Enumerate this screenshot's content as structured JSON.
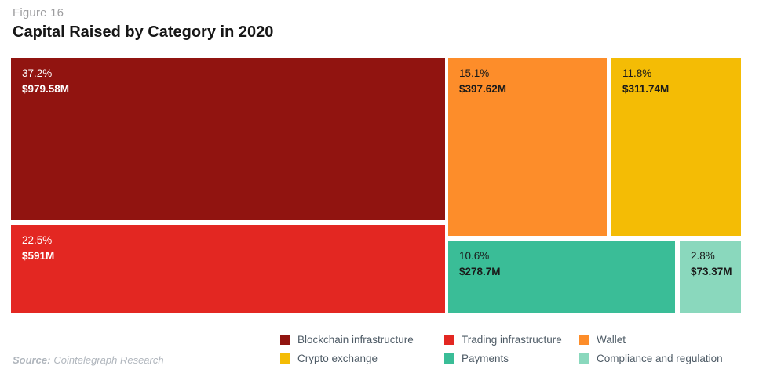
{
  "figure_label": "Figure 16",
  "title": "Capital Raised by Category in 2020",
  "source": {
    "prefix": "Source:",
    "text": "Cointelegraph Research"
  },
  "chart_data": {
    "type": "treemap",
    "title": "Capital Raised by Category in 2020",
    "unit": "USD millions",
    "legend_position": "bottom",
    "items": [
      {
        "label": "Blockchain infrastructure",
        "percent": 37.2,
        "percent_label": "37.2%",
        "value": 979.58,
        "value_label": "$979.58M",
        "color": "#911410"
      },
      {
        "label": "Trading infrastructure",
        "percent": 22.5,
        "percent_label": "22.5%",
        "value": 591,
        "value_label": "$591M",
        "color": "#e32722"
      },
      {
        "label": "Wallet",
        "percent": 15.1,
        "percent_label": "15.1%",
        "value": 397.62,
        "value_label": "$397.62M",
        "color": "#fd8d2a"
      },
      {
        "label": "Crypto exchange",
        "percent": 11.8,
        "percent_label": "11.8%",
        "value": 311.74,
        "value_label": "$311.74M",
        "color": "#f4bc05"
      },
      {
        "label": "Payments",
        "percent": 10.6,
        "percent_label": "10.6%",
        "value": 278.7,
        "value_label": "$278.7M",
        "color": "#3abd97"
      },
      {
        "label": "Compliance and regulation",
        "percent": 2.8,
        "percent_label": "2.8%",
        "value": 73.37,
        "value_label": "$73.37M",
        "color": "#8ad8bd"
      }
    ]
  }
}
